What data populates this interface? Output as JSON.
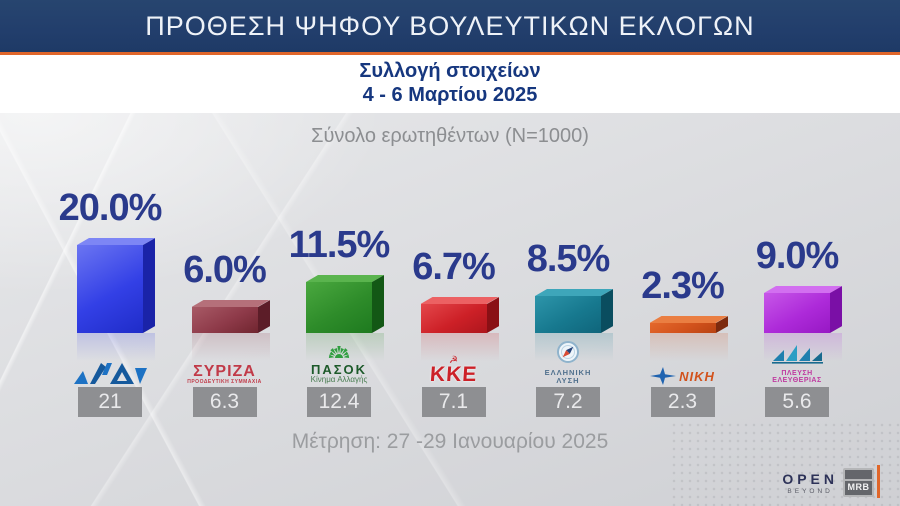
{
  "header": {
    "title": "ΠΡΟΘΕΣΗ ΨΗΦΟΥ ΒΟΥΛΕΥΤΙΚΩΝ ΕΚΛΟΓΩΝ",
    "subtitle_line1": "Συλλογή στοιχείων",
    "subtitle_line2": "4 - 6 Μαρτίου 2025",
    "header_bg_color": "#223e6c",
    "accent_color": "#e0662a",
    "subtitle_color": "#16377f"
  },
  "sample_note": "Σύνολο ερωτηθέντων (N=1000)",
  "measurement_note": "Μέτρηση: 27 -29 Ιανουαρίου 2025",
  "footer": {
    "open_logo": "OPEN",
    "open_sub": "BEYOND",
    "mrb_logo": "MRB"
  },
  "chart_data": {
    "type": "bar",
    "title": "ΠΡΟΘΕΣΗ ΨΗΦΟΥ ΒΟΥΛΕΥΤΙΚΩΝ ΕΚΛΟΓΩΝ",
    "subtitle": "Σύνολο ερωτηθέντων (N=1000)",
    "categories": [
      "ΝΔ",
      "ΣΥΡΙΖΑ",
      "ΠΑΣΟΚ",
      "ΚΚΕ",
      "ΕΛΛΗΝΙΚΗ ΛΥΣΗ",
      "ΝΙΚΗ",
      "ΠΛΕΥΣΗ ΕΛΕΥΘΕΡΙΑΣ"
    ],
    "series": [
      {
        "name": "Συλλογή στοιχείων 4 - 6 Μαρτίου 2025",
        "values": [
          20.0,
          6.0,
          11.5,
          6.7,
          8.5,
          2.3,
          9.0
        ]
      },
      {
        "name": "Μέτρηση: 27 -29 Ιανουαρίου 2025",
        "values": [
          21,
          6.3,
          12.4,
          7.1,
          7.2,
          2.3,
          5.6
        ]
      }
    ],
    "value_label_color": "#2a3a8c",
    "ylim": [
      0,
      22
    ],
    "grid": false,
    "legend": false
  },
  "parties": [
    {
      "key": "nd",
      "name": "ΝΔ",
      "value": 20.0,
      "pct_label": "20.0%",
      "prev_label": "21",
      "colors": {
        "light": "#6b75f2",
        "base": "#3340e6",
        "dark": "#1f2cc8",
        "side": "#1a23a8",
        "top": "#7d86f5"
      },
      "logo": {
        "type": "nd",
        "text": "ΝΔ",
        "text_color": "#1d72c4"
      }
    },
    {
      "key": "syriza",
      "name": "ΣΥΡΙΖΑ",
      "value": 6.0,
      "pct_label": "6.0%",
      "prev_label": "6.3",
      "colors": {
        "light": "#a85a66",
        "base": "#8e3a49",
        "dark": "#70252f",
        "side": "#5c1d28",
        "top": "#b5707a"
      },
      "logo": {
        "type": "stack",
        "text": "ΣΥΡΙΖΑ",
        "sub": "ΠΡΟΟΔΕΥΤΙΚΗ ΣΥΜΜΑΧΙΑ",
        "text_color": "#c13a48"
      }
    },
    {
      "key": "pasok",
      "name": "ΠΑΣΟΚ",
      "value": 11.5,
      "pct_label": "11.5%",
      "prev_label": "12.4",
      "colors": {
        "light": "#4aa83f",
        "base": "#2e8c2a",
        "dark": "#1e7a1f",
        "side": "#135815",
        "top": "#5ab44e"
      },
      "logo": {
        "type": "sun",
        "text": "ΠΑΣΟΚ",
        "sub": "Κίνημα Αλλαγής",
        "text_color": "#1d5a2a",
        "icon_color": "#2f9e3f"
      }
    },
    {
      "key": "kke",
      "name": "ΚΚΕ",
      "value": 6.7,
      "pct_label": "6.7%",
      "prev_label": "7.1",
      "colors": {
        "light": "#e4474b",
        "base": "#cd2027",
        "dark": "#ae161d",
        "side": "#8a1015",
        "top": "#ec6163"
      },
      "logo": {
        "type": "kke",
        "text": "ΚΚΕ",
        "text_color": "#cc2128"
      }
    },
    {
      "key": "elliniki-lysi",
      "name": "ΕΛΛΗΝΙΚΗ ΛΥΣΗ",
      "value": 8.5,
      "pct_label": "8.5%",
      "prev_label": "7.2",
      "colors": {
        "light": "#2d95aa",
        "base": "#17798f",
        "dark": "#0f657b",
        "side": "#0a4d5f",
        "top": "#3ea6ba"
      },
      "logo": {
        "type": "compass",
        "text": "ΕΛΛΗΝΙΚΗ",
        "sub": "ΛΥΣΗ",
        "text_color": "#51718e"
      }
    },
    {
      "key": "niki",
      "name": "ΝΙΚΗ",
      "value": 2.3,
      "pct_label": "2.3%",
      "prev_label": "2.3",
      "colors": {
        "light": "#e4682c",
        "base": "#d2521c",
        "dark": "#b84312",
        "side": "#7c2a0e",
        "top": "#ea7e42"
      },
      "logo": {
        "type": "niki",
        "text": "ΝΙΚΗ",
        "text_color": "#d2521c",
        "icon_color": "#1f63b0"
      }
    },
    {
      "key": "plefsi",
      "name": "ΠΛΕΥΣΗ ΕΛΕΥΘΕΡΙΑΣ",
      "value": 9.0,
      "pct_label": "9.0%",
      "prev_label": "5.6",
      "colors": {
        "light": "#c757e8",
        "base": "#ad2ad9",
        "dark": "#9718c4",
        "side": "#7a0fa6",
        "top": "#d26ff0"
      },
      "logo": {
        "type": "sail",
        "text": "ΠΛΕΥΣΗ",
        "sub": "ΕΛΕΥΘΕΡΙΑΣ",
        "text_color": "#bf3ba0",
        "icon_color": "#2792b8"
      }
    }
  ]
}
